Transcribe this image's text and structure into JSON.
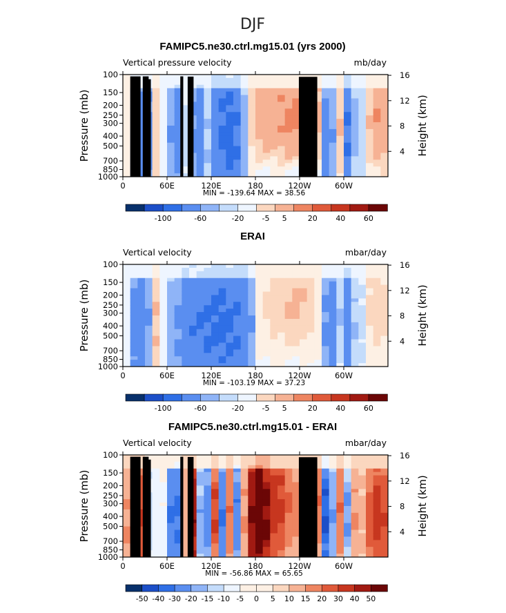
{
  "figure": {
    "title": "DJF"
  },
  "palette": {
    "diverging": [
      "#08306b",
      "#1c4fc8",
      "#2f6fe6",
      "#5a8ef0",
      "#8fb4f7",
      "#c4dcfb",
      "#eef5ff",
      "#fdf0e4",
      "#fbd7bf",
      "#f6b294",
      "#ee8561",
      "#e05a3a",
      "#c7361f",
      "#a11a12",
      "#6b0606"
    ]
  },
  "chart_data": [
    {
      "type": "heatmap",
      "title": "FAMIPC5.ne30.ctrl.mg15.01 (yrs 2000)",
      "left_label": "Vertical pressure velocity",
      "right_label": "mb/day",
      "ylabel": "Pressure (mb)",
      "y2label": "Height (km)",
      "x_ticks": [
        "0",
        "60E",
        "120E",
        "180",
        "120W",
        "60W"
      ],
      "x_tick_values": [
        0,
        60,
        120,
        180,
        240,
        300
      ],
      "xlim": [
        0,
        360
      ],
      "y_ticks": [
        "100",
        "150",
        "200",
        "250",
        "300",
        "400",
        "500",
        "700",
        "850",
        "1000"
      ],
      "y_tick_values": [
        100,
        150,
        200,
        250,
        300,
        400,
        500,
        700,
        850,
        1000
      ],
      "ylim": [
        1000,
        100
      ],
      "y2_ticks": [
        "4",
        "8",
        "12",
        "16"
      ],
      "y2_tick_values": [
        4,
        8,
        12,
        16
      ],
      "stats": "MIN = -139.64   MAX =  38.56",
      "colorbar_labels": [
        "-100",
        "-60",
        "-20",
        "-5",
        "5",
        "20",
        "40",
        "60"
      ],
      "field": {
        "x": [
          0,
          10,
          20,
          30,
          40,
          50,
          60,
          70,
          80,
          90,
          100,
          110,
          120,
          130,
          140,
          150,
          160,
          170,
          180,
          190,
          200,
          210,
          220,
          230,
          240,
          250,
          260,
          270,
          280,
          290,
          300,
          310,
          320,
          330,
          340,
          350
        ],
        "amp": [
          2,
          -18,
          -30,
          -25,
          8,
          -4,
          -20,
          -30,
          -6,
          -22,
          -32,
          -10,
          -34,
          -45,
          -50,
          -40,
          -15,
          8,
          14,
          16,
          18,
          20,
          22,
          24,
          20,
          16,
          12,
          -28,
          -20,
          10,
          -40,
          -12,
          -8,
          10,
          20,
          18
        ],
        "shape": [
          0.3,
          0.6,
          0.6,
          0.6,
          0.6,
          0.5,
          0.6,
          0.6,
          0.5,
          0.6,
          0.6,
          0.5,
          0.6,
          0.6,
          0.6,
          0.6,
          0.6,
          0.9,
          0.9,
          0.9,
          0.9,
          0.9,
          0.9,
          0.9,
          0.9,
          0.9,
          0.9,
          0.6,
          0.6,
          0.7,
          0.6,
          0.6,
          0.6,
          0.8,
          0.8,
          0.8
        ]
      }
    },
    {
      "type": "heatmap",
      "title": "ERAI",
      "left_label": "Vertical velocity",
      "right_label": "mbar/day",
      "ylabel": "Pressure (mb)",
      "y2label": "Height (km)",
      "x_ticks": [
        "0",
        "60E",
        "120E",
        "180",
        "120W",
        "60W"
      ],
      "x_tick_values": [
        0,
        60,
        120,
        180,
        240,
        300
      ],
      "xlim": [
        0,
        360
      ],
      "y_ticks": [
        "100",
        "150",
        "200",
        "250",
        "300",
        "400",
        "500",
        "700",
        "850",
        "1000"
      ],
      "y_tick_values": [
        100,
        150,
        200,
        250,
        300,
        400,
        500,
        700,
        850,
        1000
      ],
      "ylim": [
        1000,
        100
      ],
      "y2_ticks": [
        "4",
        "8",
        "12",
        "16"
      ],
      "y2_tick_values": [
        4,
        8,
        12,
        16
      ],
      "stats": "MIN = -103.19   MAX =  37.23",
      "colorbar_labels": [
        "-100",
        "-60",
        "-20",
        "-5",
        "5",
        "20",
        "40",
        "60"
      ],
      "field": {
        "x": [
          0,
          10,
          20,
          30,
          40,
          50,
          60,
          70,
          80,
          90,
          100,
          110,
          120,
          130,
          140,
          150,
          160,
          170,
          180,
          190,
          200,
          210,
          220,
          230,
          240,
          250,
          260,
          270,
          280,
          290,
          300,
          310,
          320,
          330,
          340,
          350
        ],
        "amp": [
          -3,
          -28,
          -35,
          -20,
          10,
          -4,
          -14,
          -22,
          -34,
          -38,
          -40,
          -42,
          -44,
          -46,
          -44,
          -40,
          -36,
          -20,
          4,
          6,
          8,
          8,
          10,
          12,
          10,
          8,
          4,
          -22,
          -30,
          -10,
          -32,
          -10,
          -6,
          6,
          8,
          6
        ],
        "shape": [
          0.4,
          0.6,
          0.6,
          0.6,
          0.6,
          0.5,
          0.6,
          0.6,
          0.6,
          0.6,
          0.6,
          0.6,
          0.6,
          0.6,
          0.6,
          0.6,
          0.6,
          0.6,
          0.9,
          0.9,
          0.9,
          0.9,
          0.9,
          0.9,
          0.9,
          0.9,
          0.9,
          0.6,
          0.6,
          0.7,
          0.6,
          0.6,
          0.6,
          0.8,
          0.8,
          0.8
        ]
      }
    },
    {
      "type": "heatmap",
      "title": "FAMIPC5.ne30.ctrl.mg15.01 - ERAI",
      "left_label": "Vertical velocity",
      "right_label": "mbar/day",
      "ylabel": "Pressure (mb)",
      "y2label": "Height (km)",
      "x_ticks": [
        "0",
        "60E",
        "120E",
        "180",
        "120W",
        "60W"
      ],
      "x_tick_values": [
        0,
        60,
        120,
        180,
        240,
        300
      ],
      "xlim": [
        0,
        360
      ],
      "y_ticks": [
        "100",
        "150",
        "200",
        "250",
        "300",
        "400",
        "500",
        "700",
        "850",
        "1000"
      ],
      "y_tick_values": [
        100,
        150,
        200,
        250,
        300,
        400,
        500,
        700,
        850,
        1000
      ],
      "ylim": [
        1000,
        100
      ],
      "y2_ticks": [
        "4",
        "8",
        "12",
        "16"
      ],
      "y2_tick_values": [
        4,
        8,
        12,
        16
      ],
      "stats": "MIN = -56.86   MAX =  65.65",
      "colorbar_labels": [
        "-50",
        "-40",
        "-30",
        "-20",
        "-15",
        "-10",
        "-5",
        "0",
        "5",
        "10",
        "15",
        "20",
        "30",
        "40",
        "50"
      ],
      "field": {
        "x": [
          0,
          10,
          20,
          30,
          40,
          50,
          60,
          70,
          80,
          90,
          100,
          110,
          120,
          130,
          140,
          150,
          160,
          170,
          180,
          190,
          200,
          210,
          220,
          230,
          240,
          250,
          260,
          270,
          280,
          290,
          300,
          310,
          320,
          330,
          340,
          350
        ],
        "amp": [
          10,
          28,
          20,
          -12,
          -8,
          -6,
          -30,
          -32,
          8,
          36,
          -18,
          -26,
          20,
          -30,
          14,
          -28,
          10,
          40,
          55,
          42,
          26,
          22,
          16,
          12,
          10,
          8,
          14,
          -40,
          -20,
          14,
          -20,
          10,
          6,
          18,
          24,
          20
        ],
        "shape": [
          0.5,
          0.6,
          0.6,
          0.6,
          0.6,
          0.5,
          0.6,
          0.6,
          0.6,
          0.6,
          0.6,
          0.6,
          0.6,
          0.6,
          0.6,
          0.6,
          0.6,
          0.6,
          0.6,
          0.6,
          0.7,
          0.7,
          0.7,
          0.7,
          0.7,
          0.7,
          0.7,
          0.6,
          0.6,
          0.6,
          0.6,
          0.6,
          0.6,
          0.6,
          0.6,
          0.6
        ]
      }
    }
  ],
  "terrain_mask": {
    "segments_deg": [
      [
        10,
        24
      ],
      [
        27,
        35
      ],
      [
        34,
        38
      ],
      [
        78,
        82
      ],
      [
        88,
        96
      ],
      [
        239,
        264
      ]
    ],
    "tops_mb": [
      960,
      960,
      900,
      960,
      955,
      950
    ]
  }
}
